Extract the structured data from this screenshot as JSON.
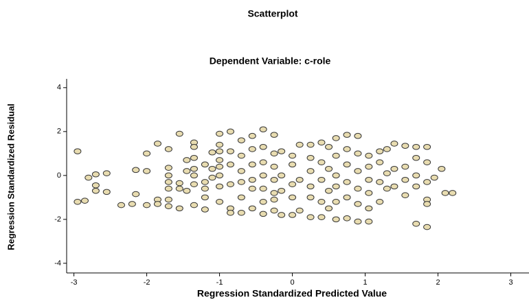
{
  "chart_data": {
    "type": "scatter",
    "title": "Scatterplot",
    "subtitle": "Dependent Variable: c-role",
    "x_label": "Regression Standardized Predicted Value",
    "y_label": "Regression Standardized Residual",
    "color": "#e8dcb0",
    "xlim": [
      -3.1,
      3.25
    ],
    "xticks": [
      -3,
      -2,
      -1,
      0,
      1,
      2,
      3
    ],
    "ylim": [
      -4.44,
      4.4
    ],
    "yticks": [
      -4,
      -2,
      0,
      2,
      4
    ],
    "x": [
      -2.95,
      -2.95,
      -2.85,
      -2.8,
      -2.7,
      -2.7,
      -2.7,
      -2.55,
      -2.55,
      -2.35,
      -2.2,
      -2.15,
      -2.15,
      -2.0,
      -2.0,
      -2.0,
      -1.85,
      -1.85,
      -1.85,
      -1.7,
      -1.7,
      -1.7,
      -1.7,
      -1.7,
      -1.7,
      -1.7,
      -1.55,
      -1.55,
      -1.55,
      -1.55,
      -1.45,
      -1.45,
      -1.45,
      -1.35,
      -1.35,
      -1.35,
      -1.35,
      -1.35,
      -1.35,
      -1.35,
      -1.2,
      -1.2,
      -1.2,
      -1.2,
      -1.2,
      -1.1,
      -1.1,
      -1.1,
      -1.0,
      -1.0,
      -1.0,
      -1.0,
      -1.0,
      -1.0,
      -1.0,
      -1.0,
      -0.85,
      -0.85,
      -0.85,
      -0.85,
      -0.85,
      -0.85,
      -0.7,
      -0.7,
      -0.7,
      -0.7,
      -0.7,
      -0.7,
      -0.55,
      -0.55,
      -0.55,
      -0.55,
      -0.55,
      -0.55,
      -0.4,
      -0.4,
      -0.4,
      -0.4,
      -0.4,
      -0.4,
      -0.4,
      -0.25,
      -0.25,
      -0.25,
      -0.25,
      -0.25,
      -0.25,
      -0.25,
      -0.15,
      -0.15,
      -0.15,
      -0.15,
      0,
      0,
      0,
      0,
      0,
      0.1,
      0.1,
      0.1,
      0.25,
      0.25,
      0.25,
      0.25,
      0.25,
      0.25,
      0.4,
      0.4,
      0.4,
      0.4,
      0.4,
      0.5,
      0.5,
      0.5,
      0.5,
      0.6,
      0.6,
      0.6,
      0.6,
      0.6,
      0.6,
      0.75,
      0.75,
      0.75,
      0.75,
      0.75,
      0.75,
      0.9,
      0.9,
      0.9,
      0.9,
      0.9,
      0.9,
      1.05,
      1.05,
      1.05,
      1.05,
      1.05,
      1.05,
      1.2,
      1.2,
      1.2,
      1.2,
      1.3,
      1.3,
      1.3,
      1.4,
      1.4,
      1.4,
      1.55,
      1.55,
      1.55,
      1.55,
      1.7,
      1.7,
      1.7,
      1.7,
      1.7,
      1.85,
      1.85,
      1.85,
      1.85,
      1.85,
      1.85,
      1.95,
      2.05,
      2.1,
      2.2
    ],
    "values": [
      1.1,
      -1.2,
      -1.15,
      -0.1,
      0.05,
      -0.45,
      -0.7,
      0.1,
      -0.75,
      -1.35,
      -1.3,
      0.25,
      -0.85,
      0.2,
      -1.35,
      1.0,
      1.45,
      -1.1,
      -1.3,
      1.2,
      0.35,
      0.0,
      -0.3,
      -0.6,
      -1.1,
      -1.4,
      1.9,
      -0.35,
      -0.6,
      -1.5,
      0.7,
      0.2,
      -0.7,
      1.5,
      1.3,
      0.8,
      0.3,
      0.0,
      -0.4,
      -1.35,
      0.5,
      -0.3,
      -0.6,
      -1.0,
      -1.55,
      1.05,
      0.3,
      -0.1,
      1.9,
      1.4,
      1.1,
      0.7,
      0.4,
      0.0,
      -0.5,
      -1.2,
      2.0,
      1.1,
      0.5,
      -0.4,
      -1.5,
      -1.7,
      1.6,
      0.9,
      0.2,
      -0.3,
      -1.0,
      -1.7,
      1.8,
      1.2,
      0.5,
      -0.2,
      -0.6,
      -1.5,
      2.1,
      1.3,
      0.6,
      0.0,
      -0.6,
      -1.2,
      -1.75,
      1.85,
      1.0,
      0.4,
      -0.2,
      -0.8,
      -1.1,
      -1.6,
      1.1,
      0.0,
      -0.7,
      -1.8,
      0.9,
      0.5,
      -0.4,
      -1.0,
      -1.8,
      1.4,
      -0.2,
      -1.6,
      1.4,
      0.8,
      0.2,
      -0.5,
      -1.0,
      -1.9,
      1.5,
      0.6,
      -0.2,
      -1.2,
      -1.9,
      1.3,
      0.3,
      -0.7,
      -1.5,
      1.7,
      0.9,
      0.0,
      -0.5,
      -1.2,
      -2.0,
      1.85,
      1.2,
      0.5,
      -0.3,
      -1.0,
      -1.95,
      1.8,
      1.0,
      0.2,
      -0.6,
      -1.3,
      -2.1,
      0.9,
      0.4,
      -0.2,
      -0.8,
      -1.5,
      -2.1,
      1.1,
      0.6,
      -0.3,
      -1.2,
      1.2,
      0.1,
      -0.6,
      1.45,
      0.3,
      -0.5,
      1.35,
      0.4,
      -0.2,
      -0.9,
      1.3,
      0.8,
      0.0,
      -0.5,
      -2.2,
      1.3,
      0.6,
      -0.3,
      -1.1,
      -1.3,
      -2.35,
      -0.1,
      0.3,
      -0.8,
      -0.8
    ]
  }
}
